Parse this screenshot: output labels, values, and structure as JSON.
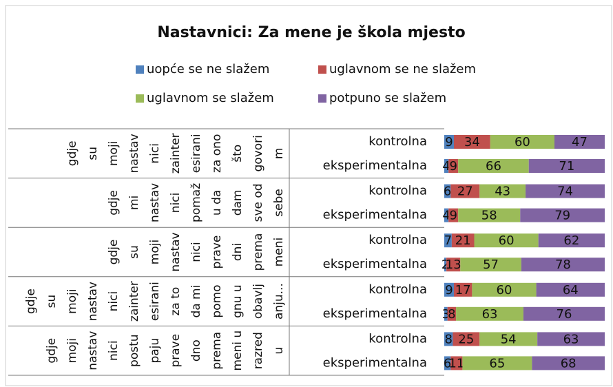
{
  "chart_data": {
    "type": "bar",
    "orientation": "horizontal",
    "stacked": true,
    "title": "Nastavnici: Za mene je škola mjesto",
    "group_labels": [
      [
        "gdje",
        "su",
        "moji",
        "nastav",
        "nici",
        "zainter",
        "esirani",
        "za ono",
        "što",
        "govori",
        "m"
      ],
      [
        "gdje",
        "mi",
        "nastav",
        "nici",
        "pomaž",
        "u da",
        "dam",
        "sve od",
        "sebe"
      ],
      [
        "gdje",
        "su",
        "moji",
        "nastav",
        "nici",
        "prave",
        "dni",
        "prema",
        "meni"
      ],
      [
        "gdje",
        "su",
        "moji",
        "nastav",
        "nici",
        "zainter",
        "esirani",
        "za to",
        "da mi",
        "pomo",
        "gnu u",
        "obavlj",
        "anju..."
      ],
      [
        "gdje",
        "moji",
        "nastav",
        "nici",
        "postu",
        "paju",
        "prave",
        "dno",
        "prema",
        "meni u",
        "razred",
        "u"
      ]
    ],
    "categories": [
      "kontrolna",
      "eksperimentalna",
      "kontrolna",
      "eksperimentalna",
      "kontrolna",
      "eksperimentalna",
      "kontrolna",
      "eksperimentalna",
      "kontrolna",
      "eksperimentalna"
    ],
    "series": [
      {
        "name": "uopće se ne slažem",
        "color": "#4f81bd",
        "values": [
          9,
          4,
          6,
          4,
          7,
          2,
          9,
          3,
          8,
          6
        ]
      },
      {
        "name": "uglavnom se ne slažem",
        "color": "#c0504d",
        "values": [
          34,
          9,
          27,
          9,
          21,
          13,
          17,
          8,
          25,
          11
        ]
      },
      {
        "name": "uglavnom se slažem",
        "color": "#9bbb59",
        "values": [
          60,
          66,
          43,
          58,
          60,
          57,
          60,
          63,
          54,
          65
        ]
      },
      {
        "name": "potpuno se slažem",
        "color": "#8064a2",
        "values": [
          47,
          71,
          74,
          79,
          62,
          78,
          64,
          76,
          63,
          68
        ]
      }
    ],
    "xlim": [
      0,
      150
    ]
  }
}
